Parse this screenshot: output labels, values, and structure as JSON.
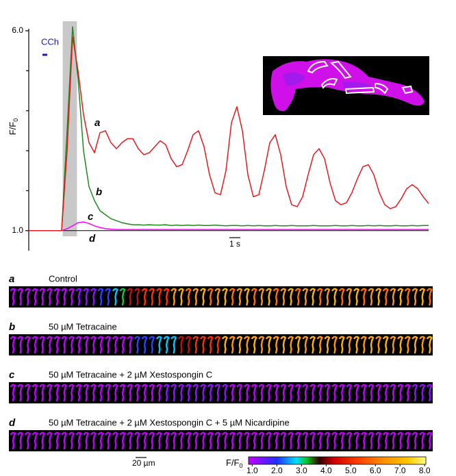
{
  "chart_data": {
    "type": "line",
    "annotation": "CCh",
    "ylabel": [
      "F/F",
      "0"
    ],
    "scalebar": "1 s",
    "stimulus": [
      3.1,
      4.4
    ],
    "xlim": [
      0,
      37
    ],
    "ylim": [
      0.5,
      6.05
    ],
    "yticks": [
      {
        "value": 1,
        "label": "1.0"
      },
      {
        "value": 6,
        "label": "6.0"
      }
    ],
    "yminorticks": [
      2,
      3,
      4,
      5
    ],
    "x": [
      0,
      0.5,
      1,
      1.5,
      2,
      2.5,
      3,
      3.5,
      4,
      4.5,
      5,
      5.5,
      6,
      6.5,
      7,
      7.5,
      8,
      8.5,
      9,
      9.5,
      10,
      10.5,
      11,
      11.5,
      12,
      12.5,
      13,
      13.5,
      14,
      14.5,
      15,
      15.5,
      16,
      16.5,
      17,
      17.5,
      18,
      18.5,
      19,
      19.5,
      20,
      20.5,
      21,
      21.5,
      22,
      22.5,
      23,
      23.5,
      24,
      24.5,
      25,
      25.5,
      26,
      26.5,
      27,
      27.5,
      28,
      28.5,
      29,
      29.5,
      30,
      30.5,
      31,
      31.5,
      32,
      32.5,
      33,
      33.5,
      34,
      34.5,
      35,
      35.5,
      36,
      36.5
    ],
    "series": [
      {
        "name": "a",
        "color": "#e8191e",
        "values": [
          1,
          1,
          1,
          1,
          1,
          1,
          1,
          3.0,
          5.85,
          5.0,
          3.9,
          3.2,
          2.95,
          3.45,
          3.5,
          3.2,
          3.05,
          3.2,
          3.3,
          3.3,
          3.05,
          2.9,
          2.95,
          3.1,
          3.25,
          3.15,
          2.8,
          2.6,
          2.65,
          3.0,
          3.4,
          3.5,
          3.1,
          2.4,
          1.95,
          1.9,
          2.5,
          3.7,
          4.1,
          3.5,
          2.4,
          1.85,
          1.9,
          2.5,
          3.2,
          3.4,
          2.9,
          2.1,
          1.65,
          1.6,
          1.85,
          2.4,
          2.9,
          3.05,
          2.8,
          2.2,
          1.75,
          1.65,
          1.7,
          1.95,
          2.3,
          2.6,
          2.65,
          2.4,
          1.95,
          1.65,
          1.55,
          1.6,
          1.8,
          2.05,
          2.15,
          2.05,
          1.85,
          1.68
        ]
      },
      {
        "name": "b",
        "color": "#1a8a1a",
        "values": [
          1,
          1,
          1,
          1,
          1,
          1,
          1,
          3.5,
          6.1,
          4.8,
          3.0,
          2.1,
          1.75,
          1.5,
          1.4,
          1.3,
          1.25,
          1.2,
          1.17,
          1.15,
          1.15,
          1.14,
          1.15,
          1.14,
          1.14,
          1.15,
          1.13,
          1.14,
          1.13,
          1.14,
          1.13,
          1.14,
          1.13,
          1.13,
          1.14,
          1.13,
          1.12,
          1.13,
          1.13,
          1.12,
          1.13,
          1.12,
          1.13,
          1.12,
          1.12,
          1.13,
          1.12,
          1.12,
          1.13,
          1.12,
          1.12,
          1.12,
          1.13,
          1.12,
          1.12,
          1.12,
          1.13,
          1.12,
          1.12,
          1.13,
          1.12,
          1.12,
          1.13,
          1.12,
          1.13,
          1.12,
          1.12,
          1.13,
          1.12,
          1.12,
          1.13,
          1.12,
          1.13,
          1.13
        ]
      },
      {
        "name": "c",
        "color": "#ff00ff",
        "values": [
          1,
          1,
          1,
          1,
          1,
          1,
          1,
          1.05,
          1.12,
          1.2,
          1.22,
          1.18,
          1.12,
          1.08,
          1.05,
          1.04,
          1.03,
          1.03,
          1.03,
          1.03,
          1.03,
          1.03,
          1.03,
          1.03,
          1.03,
          1.03,
          1.03,
          1.03,
          1.03,
          1.03,
          1.03,
          1.03,
          1.03,
          1.03,
          1.03,
          1.03,
          1.03,
          1.03,
          1.03,
          1.03,
          1.03,
          1.03,
          1.03,
          1.03,
          1.03,
          1.03,
          1.03,
          1.03,
          1.03,
          1.03,
          1.03,
          1.03,
          1.03,
          1.03,
          1.03,
          1.03,
          1.03,
          1.03,
          1.03,
          1.03,
          1.03,
          1.03,
          1.03,
          1.03,
          1.03,
          1.03,
          1.03,
          1.03,
          1.03,
          1.03,
          1.03,
          1.03,
          1.03,
          1.03
        ]
      },
      {
        "name": "d",
        "color": "#000000",
        "values": [
          1,
          1,
          1,
          1,
          1,
          1,
          1,
          1,
          1,
          1,
          1,
          1,
          1,
          1,
          1,
          1,
          1,
          1,
          1,
          1,
          1,
          1,
          1,
          1,
          1,
          1,
          1,
          1,
          1,
          1,
          1,
          1,
          1,
          1,
          1,
          1,
          1,
          1,
          1,
          1,
          1,
          1,
          1,
          1,
          1,
          1,
          1,
          1,
          1,
          1,
          1,
          1,
          1,
          1,
          1,
          1,
          1,
          1,
          1,
          1,
          1,
          1,
          1,
          1,
          1,
          1,
          1,
          1,
          1,
          1,
          1,
          1,
          1,
          1
        ]
      }
    ]
  },
  "panels": [
    {
      "letter": "a",
      "title": "Control"
    },
    {
      "letter": "b",
      "title": "50 µM Tetracaine"
    },
    {
      "letter": "c",
      "title": "50 µM Tetracaine + 2 µM Xestospongin C"
    },
    {
      "letter": "d",
      "title": "50 µM Tetracaine + 2 µM Xestospongin C + 5 µM Nicardipine"
    }
  ],
  "image_scalebar": "20 µm",
  "colorbar": {
    "label": [
      "F/F",
      "0"
    ],
    "lim": [
      0.85,
      8.05
    ],
    "ticks": [
      {
        "value": 1,
        "label": "1.0"
      },
      {
        "value": 2,
        "label": "2.0"
      },
      {
        "value": 3,
        "label": "3.0"
      },
      {
        "value": 4,
        "label": "4.0"
      },
      {
        "value": 5,
        "label": "5.0"
      },
      {
        "value": 6,
        "label": "6.0"
      },
      {
        "value": 7,
        "label": "7.0"
      },
      {
        "value": 8,
        "label": "8.0"
      }
    ]
  }
}
